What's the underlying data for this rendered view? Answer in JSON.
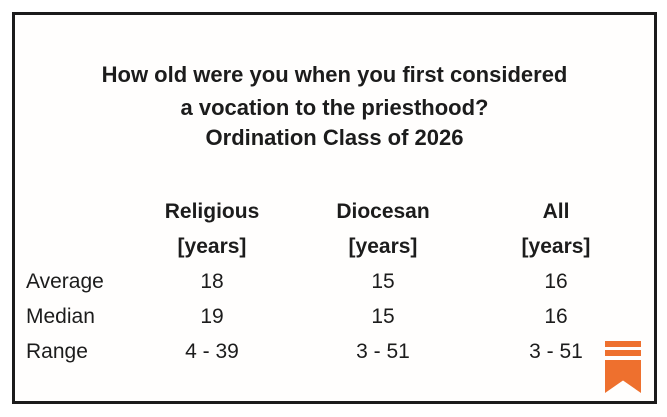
{
  "chart_data": {
    "type": "table",
    "title_lines": [
      "How old were you when you first considered",
      "a vocation to the priesthood?"
    ],
    "subtitle": "Ordination Class of 2026",
    "columns": [
      {
        "label": "Religious",
        "unit": "[years]"
      },
      {
        "label": "Diocesan",
        "unit": "[years]"
      },
      {
        "label": "All",
        "unit": "[years]"
      }
    ],
    "rows": [
      {
        "label": "Average",
        "values": [
          "18",
          "15",
          "16"
        ]
      },
      {
        "label": "Median",
        "values": [
          "19",
          "15",
          "16"
        ]
      },
      {
        "label": "Range",
        "values": [
          "4 - 39",
          "3 - 51",
          "3 - 51"
        ]
      }
    ],
    "layout_hints": {
      "gridlines": "off",
      "header_bold": true,
      "values_centered": true
    }
  },
  "icons": {
    "bookmark_ribbon": "bookmark-ribbon-icon"
  },
  "colors": {
    "accent_orange": "#EE702E",
    "border": "#1b1b1b",
    "text": "#1c1c1c",
    "background": "#ffffff"
  }
}
